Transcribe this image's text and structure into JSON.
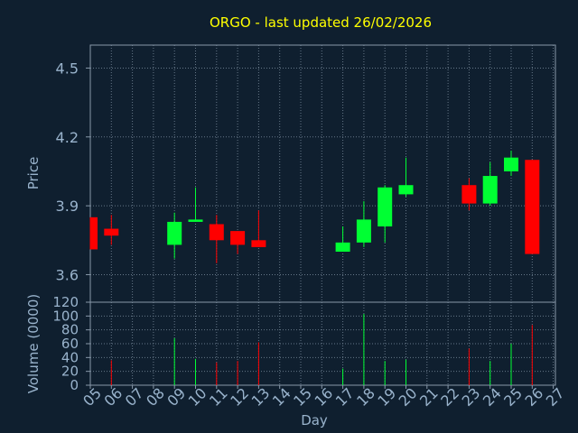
{
  "title": "ORGO - last updated 26/02/2026",
  "colors": {
    "background": "#0f1f2f",
    "title": "#ffff00",
    "axis_text": "#99b3cc",
    "axis_line": "#8899aa",
    "grid": "#667788",
    "up": "#00ff33",
    "down": "#ff0000"
  },
  "chart_data": [
    {
      "type": "candlestick",
      "ylabel": "Price",
      "ylim": [
        3.48,
        4.6
      ],
      "yticks": [
        "3.6",
        "3.9",
        "4.2",
        "4.5"
      ],
      "grid": true,
      "candles": [
        {
          "day": 5,
          "open": 3.85,
          "high": 3.85,
          "low": 3.71,
          "close": 3.71
        },
        {
          "day": 6,
          "open": 3.8,
          "high": 3.86,
          "low": 3.73,
          "close": 3.77
        },
        {
          "day": 9,
          "open": 3.73,
          "high": 3.87,
          "low": 3.67,
          "close": 3.83
        },
        {
          "day": 10,
          "open": 3.83,
          "high": 3.98,
          "low": 3.83,
          "close": 3.84
        },
        {
          "day": 11,
          "open": 3.82,
          "high": 3.86,
          "low": 3.65,
          "close": 3.75
        },
        {
          "day": 12,
          "open": 3.79,
          "high": 3.79,
          "low": 3.69,
          "close": 3.73
        },
        {
          "day": 13,
          "open": 3.75,
          "high": 3.88,
          "low": 3.72,
          "close": 3.72
        },
        {
          "day": 17,
          "open": 3.7,
          "high": 3.81,
          "low": 3.7,
          "close": 3.74
        },
        {
          "day": 18,
          "open": 3.74,
          "high": 3.92,
          "low": 3.72,
          "close": 3.84
        },
        {
          "day": 19,
          "open": 3.81,
          "high": 3.99,
          "low": 3.74,
          "close": 3.98
        },
        {
          "day": 20,
          "open": 3.95,
          "high": 4.11,
          "low": 3.94,
          "close": 3.99
        },
        {
          "day": 23,
          "open": 3.99,
          "high": 4.02,
          "low": 3.88,
          "close": 3.91
        },
        {
          "day": 24,
          "open": 3.91,
          "high": 4.09,
          "low": 3.9,
          "close": 4.03
        },
        {
          "day": 25,
          "open": 4.05,
          "high": 4.14,
          "low": 4.03,
          "close": 4.11
        },
        {
          "day": 26,
          "open": 4.1,
          "high": 4.1,
          "low": 3.69,
          "close": 3.69
        }
      ]
    },
    {
      "type": "bar",
      "ylabel": "Volume (0000)",
      "xlabel": "Day",
      "ylim": [
        0,
        120
      ],
      "yticks": [
        "0",
        "20",
        "40",
        "60",
        "80",
        "100",
        "120"
      ],
      "xticks": [
        "05",
        "06",
        "07",
        "08",
        "09",
        "10",
        "11",
        "12",
        "13",
        "14",
        "15",
        "16",
        "17",
        "18",
        "19",
        "20",
        "21",
        "22",
        "23",
        "24",
        "25",
        "26",
        "27"
      ],
      "xlim": [
        5,
        27
      ],
      "grid": true,
      "volumes": [
        {
          "day": 6,
          "value": 36,
          "dir": "down"
        },
        {
          "day": 9,
          "value": 68,
          "dir": "up"
        },
        {
          "day": 10,
          "value": 38,
          "dir": "up"
        },
        {
          "day": 11,
          "value": 33,
          "dir": "down"
        },
        {
          "day": 12,
          "value": 35,
          "dir": "down"
        },
        {
          "day": 13,
          "value": 62,
          "dir": "down"
        },
        {
          "day": 17,
          "value": 24,
          "dir": "up"
        },
        {
          "day": 18,
          "value": 103,
          "dir": "up"
        },
        {
          "day": 19,
          "value": 35,
          "dir": "up"
        },
        {
          "day": 20,
          "value": 37,
          "dir": "up"
        },
        {
          "day": 23,
          "value": 53,
          "dir": "down"
        },
        {
          "day": 24,
          "value": 35,
          "dir": "up"
        },
        {
          "day": 25,
          "value": 60,
          "dir": "up"
        },
        {
          "day": 26,
          "value": 87,
          "dir": "down"
        }
      ]
    }
  ]
}
